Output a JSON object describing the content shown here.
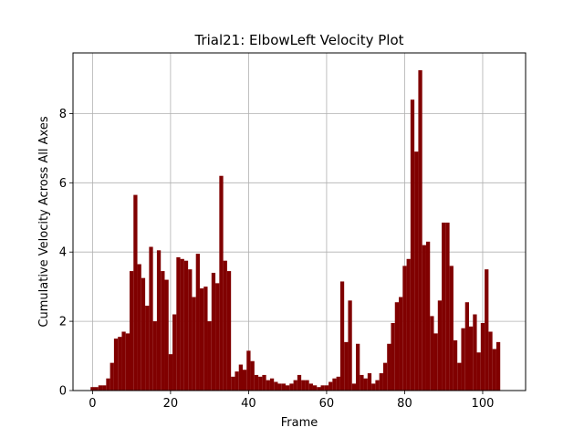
{
  "chart_data": {
    "type": "bar",
    "title": "Trial21: ElbowLeft Velocity Plot",
    "xlabel": "Frame",
    "ylabel": "Cumulative Velocity Across All Axes",
    "xlim": [
      -5,
      111
    ],
    "ylim": [
      0,
      9.75
    ],
    "xticks": [
      0,
      20,
      40,
      60,
      80,
      100
    ],
    "yticks": [
      0,
      2,
      4,
      6,
      8
    ],
    "grid": true,
    "bar_color": "#800000",
    "x": [
      0,
      1,
      2,
      3,
      4,
      5,
      6,
      7,
      8,
      9,
      10,
      11,
      12,
      13,
      14,
      15,
      16,
      17,
      18,
      19,
      20,
      21,
      22,
      23,
      24,
      25,
      26,
      27,
      28,
      29,
      30,
      31,
      32,
      33,
      34,
      35,
      36,
      37,
      38,
      39,
      40,
      41,
      42,
      43,
      44,
      45,
      46,
      47,
      48,
      49,
      50,
      51,
      52,
      53,
      54,
      55,
      56,
      57,
      58,
      59,
      60,
      61,
      62,
      63,
      64,
      65,
      66,
      67,
      68,
      69,
      70,
      71,
      72,
      73,
      74,
      75,
      76,
      77,
      78,
      79,
      80,
      81,
      82,
      83,
      84,
      85,
      86,
      87,
      88,
      89,
      90,
      91,
      92,
      93,
      94,
      95,
      96,
      97,
      98,
      99,
      100,
      101,
      102,
      103,
      104,
      105
    ],
    "values": [
      0.1,
      0.1,
      0.15,
      0.15,
      0.35,
      0.8,
      1.5,
      1.55,
      1.7,
      1.65,
      3.45,
      5.65,
      3.65,
      3.25,
      2.45,
      4.15,
      2.0,
      4.05,
      3.45,
      3.2,
      1.05,
      2.2,
      3.85,
      3.8,
      3.75,
      3.5,
      2.7,
      3.95,
      2.95,
      3.0,
      2.0,
      3.4,
      3.1,
      6.2,
      3.75,
      3.45,
      0.4,
      0.55,
      0.75,
      0.6,
      1.15,
      0.85,
      0.45,
      0.4,
      0.45,
      0.3,
      0.35,
      0.25,
      0.2,
      0.2,
      0.15,
      0.2,
      0.3,
      0.45,
      0.3,
      0.3,
      0.2,
      0.15,
      0.1,
      0.15,
      0.15,
      0.25,
      0.35,
      0.4,
      3.15,
      1.4,
      2.6,
      0.2,
      1.35,
      0.45,
      0.35,
      0.5,
      0.2,
      0.3,
      0.5,
      0.8,
      1.35,
      1.95,
      2.55,
      2.7,
      3.6,
      3.8,
      8.4,
      6.9,
      9.25,
      4.2,
      4.3,
      2.15,
      1.65,
      2.6,
      4.85,
      4.85,
      3.6,
      1.45,
      0.8,
      1.8,
      2.55,
      1.85,
      2.2,
      1.1,
      1.95,
      3.5,
      1.7,
      1.2,
      1.4,
      0.0
    ]
  }
}
